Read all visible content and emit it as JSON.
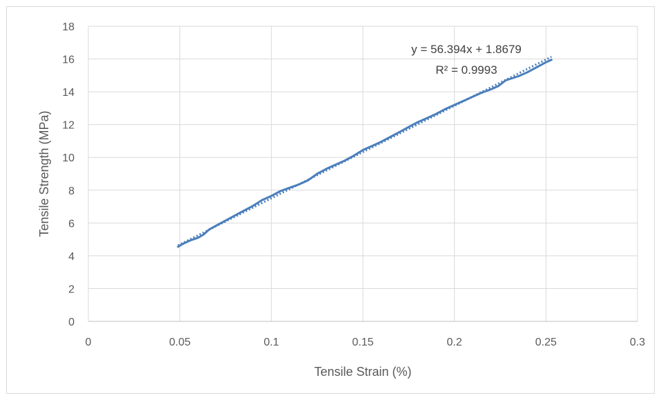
{
  "chart_data": {
    "type": "scatter",
    "title": "",
    "xlabel": "Tensile Strain (%)",
    "ylabel": "Tensile Strength (MPa)",
    "xlim": [
      0,
      0.3
    ],
    "ylim": [
      0,
      18
    ],
    "x_ticks": [
      "0",
      "0.05",
      "0.1",
      "0.15",
      "0.2",
      "0.25",
      "0.3"
    ],
    "y_ticks": [
      "0",
      "2",
      "4",
      "6",
      "8",
      "10",
      "12",
      "14",
      "16",
      "18"
    ],
    "grid": true,
    "legend": "none",
    "series": [
      {
        "color": "#4a7ebb",
        "line": "solid",
        "x": [
          0.049,
          0.052,
          0.056,
          0.06,
          0.063,
          0.066,
          0.07,
          0.075,
          0.08,
          0.085,
          0.09,
          0.095,
          0.1,
          0.105,
          0.11,
          0.115,
          0.12,
          0.125,
          0.13,
          0.135,
          0.14,
          0.145,
          0.15,
          0.155,
          0.16,
          0.165,
          0.17,
          0.175,
          0.18,
          0.185,
          0.19,
          0.195,
          0.2,
          0.205,
          0.21,
          0.215,
          0.22,
          0.224,
          0.228,
          0.235,
          0.24,
          0.245,
          0.25,
          0.253
        ],
        "y": [
          4.55,
          4.75,
          4.95,
          5.1,
          5.3,
          5.6,
          5.85,
          6.15,
          6.45,
          6.75,
          7.05,
          7.4,
          7.65,
          7.95,
          8.15,
          8.35,
          8.6,
          9.0,
          9.3,
          9.55,
          9.8,
          10.1,
          10.45,
          10.7,
          10.95,
          11.25,
          11.55,
          11.85,
          12.15,
          12.4,
          12.65,
          12.95,
          13.2,
          13.45,
          13.7,
          13.95,
          14.15,
          14.35,
          14.7,
          14.95,
          15.2,
          15.5,
          15.8,
          15.95
        ]
      }
    ],
    "trendline": {
      "type": "linear",
      "slope": 56.394,
      "intercept": 1.8679,
      "x_range": [
        0.049,
        0.253
      ],
      "style": "dotted",
      "color": "#4a7ebb",
      "equation_text": "y = 56.394x + 1.8679",
      "r2_text": "R² = 0.9993"
    }
  },
  "colors": {
    "series": "#4a7ebb",
    "grid": "#d9d9d9",
    "text": "#595959"
  }
}
